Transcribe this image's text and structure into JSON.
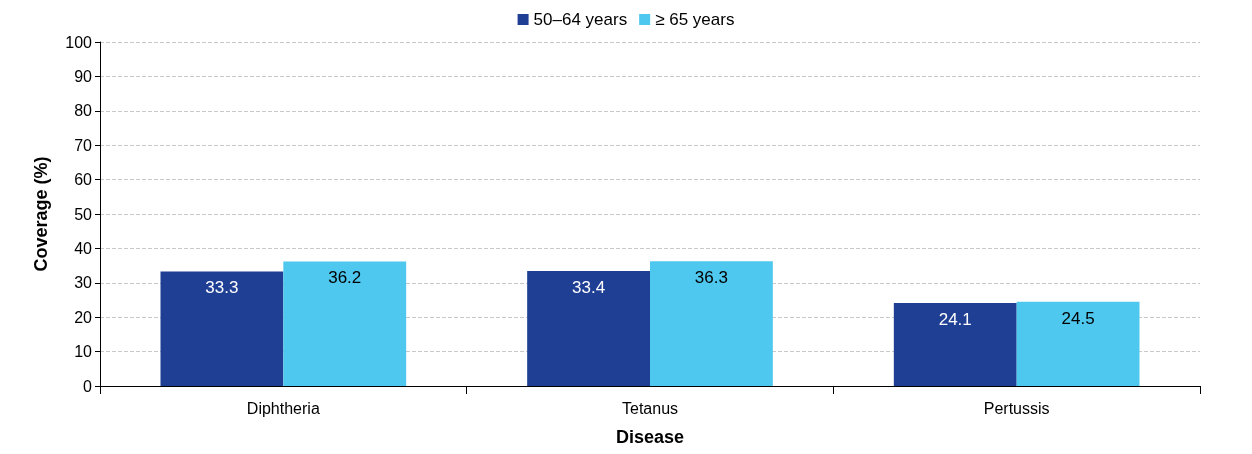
{
  "chart_data": {
    "type": "bar",
    "xlabel": "Disease",
    "ylabel": "Coverage (%)",
    "categories": [
      "Diphtheria",
      "Tetanus",
      "Pertussis"
    ],
    "series": [
      {
        "name": "50–64 years",
        "color": "#1f3f94",
        "values": [
          33.3,
          33.4,
          24.1
        ]
      },
      {
        "name": "≥ 65 years",
        "color": "#4fc8ef",
        "values": [
          36.2,
          36.3,
          24.5
        ]
      }
    ],
    "ylim": [
      0,
      100
    ],
    "yticks": [
      0,
      10,
      20,
      30,
      40,
      50,
      60,
      70,
      80,
      90,
      100
    ],
    "grid": "y",
    "legend": "top",
    "data_labels": true
  }
}
